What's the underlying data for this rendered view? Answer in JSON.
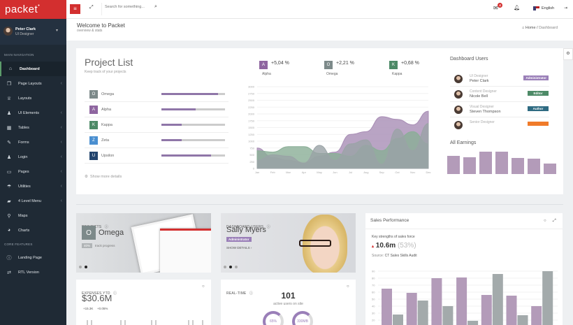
{
  "app": {
    "logo": "packet"
  },
  "user": {
    "name": "Peter Clark",
    "role": "UI Designer"
  },
  "sidebar": {
    "section_main": "MAIN NAVIGATION",
    "items": [
      {
        "label": "Dashboard",
        "icon": "home-icon",
        "glyph": "⌂",
        "active": true,
        "chevron": false
      },
      {
        "label": "Page Layouts",
        "icon": "copy-icon",
        "glyph": "❐",
        "chevron": true
      },
      {
        "label": "Layouts",
        "icon": "trophy-icon",
        "glyph": "♕",
        "chevron": false
      },
      {
        "label": "UI Elements",
        "icon": "stamp-icon",
        "glyph": "♟",
        "chevron": true
      },
      {
        "label": "Tables",
        "icon": "table-icon",
        "glyph": "▦",
        "chevron": true
      },
      {
        "label": "Forms",
        "icon": "pencil-icon",
        "glyph": "✎",
        "chevron": true
      },
      {
        "label": "Login",
        "icon": "user-icon",
        "glyph": "♟",
        "chevron": true
      },
      {
        "label": "Pages",
        "icon": "laptop-icon",
        "glyph": "▭",
        "chevron": true
      },
      {
        "label": "Utilities",
        "icon": "umbrella-icon",
        "glyph": "☂",
        "chevron": true
      },
      {
        "label": "4 Level Menu",
        "icon": "folder-icon",
        "glyph": "▰",
        "chevron": true
      },
      {
        "label": "Maps",
        "icon": "map-marker-icon",
        "glyph": "⚲",
        "chevron": false
      },
      {
        "label": "Charts",
        "icon": "pie-chart-icon",
        "glyph": "◕",
        "chevron": false
      }
    ],
    "section_core": "CORE FEATURES",
    "core_items": [
      {
        "label": "Landing Page",
        "icon": "info-icon",
        "glyph": "ⓘ"
      },
      {
        "label": "RTL Version",
        "icon": "exchange-icon",
        "glyph": "⇄"
      }
    ]
  },
  "topbar": {
    "search_placeholder": "Search for something...",
    "mail_count": "4",
    "language": "English"
  },
  "header": {
    "title": "Welcome to Packet",
    "subtitle": "overview & stats",
    "breadcrumb": [
      "Home",
      "Dashboard"
    ]
  },
  "projects": {
    "title": "Project List",
    "subtitle": "Keep track of your projects",
    "items": [
      {
        "letter": "O",
        "name": "Omega",
        "color": "#7d8a8a",
        "progress": 89
      },
      {
        "letter": "A",
        "name": "Alpha",
        "color": "#8f66a0",
        "progress": 54
      },
      {
        "letter": "K",
        "name": "Kappa",
        "color": "#4d8a67",
        "progress": 32
      },
      {
        "letter": "Z",
        "name": "Zeta",
        "color": "#4a8fd0",
        "progress": 32
      },
      {
        "letter": "U",
        "name": "Upsilon",
        "color": "#23456e",
        "progress": 78
      }
    ],
    "more": "Show more details"
  },
  "stats": [
    {
      "letter": "A",
      "value": "+5,04 %",
      "name": "Alpha",
      "color": "#8f66a0"
    },
    {
      "letter": "O",
      "value": "+2,21 %",
      "name": "Omega",
      "color": "#7d8a8a"
    },
    {
      "letter": "K",
      "value": "+0,68 %",
      "name": "Kappa",
      "color": "#4d8a67"
    }
  ],
  "chart_data": [
    {
      "type": "area",
      "categories": [
        "Jan",
        "Feb",
        "Mar",
        "Apr",
        "May",
        "Jun",
        "Jul",
        "Aug",
        "Sep",
        "Oct",
        "Nov",
        "Dec"
      ],
      "ylim": [
        0,
        3000
      ],
      "yticks": [
        0,
        250,
        500,
        750,
        1000,
        1250,
        1500,
        1750,
        2000,
        2250,
        2500,
        2750,
        3000
      ],
      "series": [
        {
          "color": "#a88db5",
          "values": [
            750,
            400,
            300,
            200,
            450,
            600,
            1250,
            1350,
            1900,
            1800,
            1600,
            2100
          ]
        },
        {
          "color": "#8aae96",
          "values": [
            650,
            600,
            800,
            800,
            550,
            550,
            450,
            850,
            650,
            1100,
            1350,
            900
          ]
        },
        {
          "color": "#9aa3a6",
          "values": [
            300,
            500,
            450,
            200,
            850,
            300,
            900,
            1050,
            150,
            1450,
            650,
            1650
          ]
        }
      ]
    },
    {
      "type": "bar",
      "title": "All Earnings",
      "values": [
        26,
        24,
        32,
        32,
        23,
        22,
        15
      ],
      "color": "#b39bb9"
    },
    {
      "type": "bar",
      "title": "Sales Performance",
      "ylim": [
        0,
        90
      ],
      "yticks": [
        10,
        20,
        30,
        40,
        50,
        60,
        70,
        80,
        90
      ],
      "series": [
        {
          "color": "#b39bb9",
          "values": [
            65,
            59,
            80,
            81,
            56,
            55,
            40
          ]
        },
        {
          "color": "#a3aaab",
          "values": [
            28,
            48,
            40,
            19,
            86,
            27,
            90
          ]
        }
      ]
    }
  ],
  "dashboard_users": {
    "title": "Dashboard Users",
    "items": [
      {
        "role": "UI Designer",
        "name": "Peter Clark",
        "badge": "Administrator",
        "color": "#9a7fb8"
      },
      {
        "role": "Content Designer",
        "name": "Nicole Bell",
        "badge": "Editor",
        "color": "#4d8a67"
      },
      {
        "role": "Visual Designer",
        "name": "Steven Thompson",
        "badge": "Author",
        "color": "#2f6b82"
      },
      {
        "role": "Senior Designer",
        "name": "",
        "badge": "",
        "color": "#f07b2a"
      }
    ]
  },
  "earnings": {
    "title": "All Earnings"
  },
  "project_slide": {
    "label": "PROJECTS",
    "letter": "O",
    "name": "Omega",
    "percent": "40%",
    "caption": "track progress"
  },
  "user_slide": {
    "label": "DASHBOARD USERS",
    "name": "Sally Myers",
    "badge": "Administrator",
    "link": "SHOW DETAILS"
  },
  "sales": {
    "title": "Sales Performance",
    "subtitle": "Key strengths of sales force",
    "value": "10.6m",
    "percent": "(53%)",
    "source_label": "Source:",
    "source": "CT Sales Skills Audit"
  },
  "expenses": {
    "label": "EXPENSES YTD",
    "value": "$30.6M",
    "delta1": "+15.3K",
    "delta2": "+0.05%"
  },
  "realtime": {
    "label": "REAL-TIME",
    "count": "101",
    "caption": "active users on site",
    "gauge1": "65%",
    "gauge1_value": 65,
    "gauge2": "330MB",
    "gauge2_value": 70
  }
}
